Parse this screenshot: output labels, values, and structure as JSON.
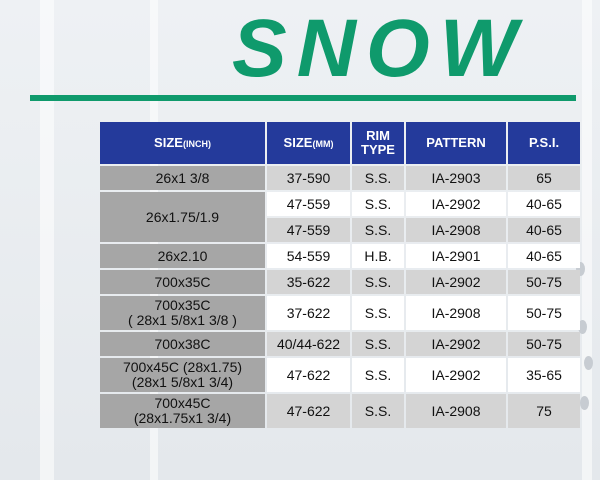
{
  "title": "SNOW",
  "table": {
    "headers": {
      "size_inch": "SIZE",
      "size_inch_unit": "(INCH)",
      "size_mm": "SIZE",
      "size_mm_unit": "(MM)",
      "rim_type_line1": "RIM",
      "rim_type_line2": "TYPE",
      "pattern": "PATTERN",
      "psi": "P.S.I."
    },
    "rows": [
      {
        "size_line1": "26x1 3/8",
        "size_line2": "",
        "mm": "37-590",
        "rim": "S.S.",
        "pattern": "IA-2903",
        "psi": "65"
      },
      {
        "size_line1": "26x1.75/1.9",
        "size_line2": "",
        "mm": "47-559",
        "rim": "S.S.",
        "pattern": "IA-2902",
        "psi": "40-65"
      },
      {
        "size_line1": "",
        "size_line2": "",
        "mm": "47-559",
        "rim": "S.S.",
        "pattern": "IA-2908",
        "psi": "40-65"
      },
      {
        "size_line1": "26x2.10",
        "size_line2": "",
        "mm": "54-559",
        "rim": "H.B.",
        "pattern": "IA-2901",
        "psi": "40-65"
      },
      {
        "size_line1": "700x35C",
        "size_line2": "",
        "mm": "35-622",
        "rim": "S.S.",
        "pattern": "IA-2902",
        "psi": "50-75"
      },
      {
        "size_line1": "700x35C",
        "size_line2": "( 28x1 5/8x1 3/8 )",
        "mm": "37-622",
        "rim": "S.S.",
        "pattern": "IA-2908",
        "psi": "50-75"
      },
      {
        "size_line1": "700x38C",
        "size_line2": "",
        "mm": "40/44-622",
        "rim": "S.S.",
        "pattern": "IA-2902",
        "psi": "50-75"
      },
      {
        "size_line1": "700x45C  (28x1.75)",
        "size_line2": "(28x1 5/8x1 3/4)",
        "mm": "47-622",
        "rim": "S.S.",
        "pattern": "IA-2902",
        "psi": "35-65"
      },
      {
        "size_line1": "700x45C",
        "size_line2": "(28x1.75x1 3/4)",
        "mm": "47-622",
        "rim": "S.S.",
        "pattern": "IA-2908",
        "psi": "75"
      }
    ]
  }
}
